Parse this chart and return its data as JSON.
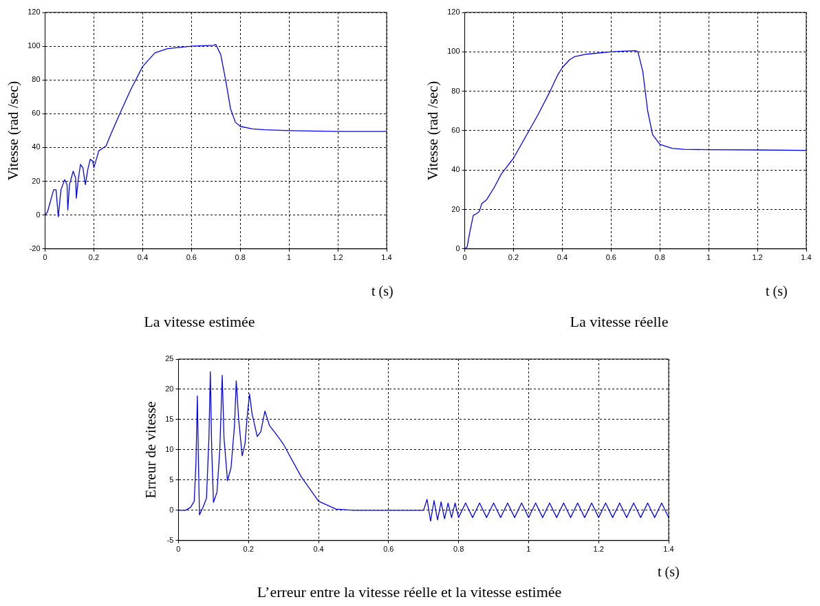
{
  "chart_data": [
    {
      "type": "line",
      "ylabel": "Vitesse (rad /sec)",
      "xlabel": "t (s)",
      "annotations": [
        "La vitesse estimée"
      ],
      "xlim": [
        0,
        1.4
      ],
      "xticks": [
        0,
        0.2,
        0.4,
        0.6,
        0.8,
        1,
        1.2,
        1.4
      ],
      "ylim": [
        -20,
        120
      ],
      "yticks": [
        -20,
        0,
        20,
        40,
        60,
        80,
        100,
        120
      ],
      "grid": true,
      "marker": "none",
      "line_style": "solid",
      "color": "#0000ff",
      "x": [
        0,
        0.01,
        0.035,
        0.045,
        0.054,
        0.065,
        0.08,
        0.09,
        0.093,
        0.1,
        0.115,
        0.125,
        0.128,
        0.135,
        0.145,
        0.155,
        0.165,
        0.175,
        0.185,
        0.195,
        0.2,
        0.21,
        0.22,
        0.24,
        0.25,
        0.27,
        0.3,
        0.35,
        0.4,
        0.45,
        0.5,
        0.6,
        0.69,
        0.7,
        0.72,
        0.74,
        0.76,
        0.78,
        0.8,
        0.85,
        0.9,
        1.0,
        1.2,
        1.4
      ],
      "values": [
        0,
        2,
        15,
        15,
        -1,
        15,
        21,
        18,
        3,
        18,
        26,
        22,
        10,
        20,
        30,
        28,
        18,
        27,
        33,
        32,
        28,
        33,
        38,
        40,
        41,
        48,
        58,
        74,
        88,
        96,
        98.5,
        100,
        100.5,
        101,
        95,
        80,
        63,
        55,
        52.5,
        51,
        50.5,
        50,
        49.5,
        49.5
      ]
    },
    {
      "type": "line",
      "ylabel": "Vitesse (rad /sec)",
      "xlabel": "t (s)",
      "annotations": [
        "La vitesse réelle"
      ],
      "xlim": [
        0,
        1.4
      ],
      "xticks": [
        0,
        0.2,
        0.4,
        0.6,
        0.8,
        1,
        1.2,
        1.4
      ],
      "ylim": [
        0,
        120
      ],
      "yticks": [
        0,
        20,
        40,
        60,
        80,
        100,
        120
      ],
      "grid": true,
      "marker": "none",
      "line_style": "solid",
      "color": "#0000ff",
      "x": [
        0,
        0.01,
        0.02,
        0.035,
        0.05,
        0.06,
        0.07,
        0.09,
        0.12,
        0.15,
        0.2,
        0.25,
        0.3,
        0.35,
        0.38,
        0.4,
        0.43,
        0.45,
        0.5,
        0.6,
        0.65,
        0.7,
        0.71,
        0.73,
        0.75,
        0.77,
        0.8,
        0.85,
        0.9,
        1.0,
        1.2,
        1.4
      ],
      "values": [
        0,
        1,
        8,
        17,
        18,
        19,
        23,
        25,
        31,
        38,
        46,
        57,
        68,
        80,
        88,
        92,
        96,
        97.5,
        98.8,
        100,
        100.3,
        100.6,
        100,
        90,
        70,
        58,
        53,
        51,
        50.5,
        50.3,
        50.2,
        50
      ]
    },
    {
      "type": "line",
      "ylabel": "Erreur de vitesse",
      "xlabel": "t (s)",
      "annotations": [
        "L’erreur entre la vitesse réelle et la vitesse estimée"
      ],
      "xlim": [
        0,
        1.4
      ],
      "xticks": [
        0,
        0.2,
        0.4,
        0.6,
        0.8,
        1,
        1.2,
        1.4
      ],
      "ylim": [
        -5,
        25
      ],
      "yticks": [
        -5,
        0,
        5,
        10,
        15,
        20,
        25
      ],
      "grid": true,
      "marker": "none",
      "line_style": "solid",
      "color": "#0000ff",
      "x": [
        0,
        0.02,
        0.035,
        0.045,
        0.05,
        0.054,
        0.057,
        0.06,
        0.07,
        0.08,
        0.087,
        0.091,
        0.095,
        0.1,
        0.11,
        0.118,
        0.125,
        0.13,
        0.14,
        0.15,
        0.16,
        0.165,
        0.172,
        0.182,
        0.19,
        0.197,
        0.203,
        0.21,
        0.225,
        0.235,
        0.247,
        0.26,
        0.28,
        0.3,
        0.35,
        0.4,
        0.45,
        0.5,
        0.6,
        0.7,
        0.71,
        0.72,
        0.73,
        0.74,
        0.75,
        0.76,
        0.77,
        0.78,
        0.79,
        0.8,
        0.82,
        0.84,
        0.86,
        0.88,
        0.9,
        0.92,
        0.94,
        0.96,
        0.98,
        1.0,
        1.02,
        1.04,
        1.06,
        1.08,
        1.1,
        1.12,
        1.14,
        1.16,
        1.18,
        1.2,
        1.22,
        1.24,
        1.26,
        1.28,
        1.3,
        1.32,
        1.34,
        1.36,
        1.38,
        1.4
      ],
      "values": [
        0,
        0,
        0.5,
        1.5,
        8,
        18.9,
        8,
        -0.75,
        0.5,
        2,
        12,
        22.9,
        10,
        1.3,
        3,
        10,
        22.3,
        12,
        4.9,
        7,
        14,
        21.4,
        15,
        9,
        11,
        16,
        19.2,
        16,
        12.2,
        13,
        16.4,
        14,
        12.5,
        10.9,
        5.6,
        1.5,
        0.2,
        0,
        0,
        0,
        1.8,
        -1.8,
        1.6,
        -1.6,
        1.4,
        -1.4,
        1.2,
        -1.2,
        1.2,
        -1.2,
        1.2,
        -1.2,
        1.2,
        -1.2,
        1.2,
        -1.2,
        1.2,
        -1.2,
        1.2,
        -1.2,
        1.2,
        -1.2,
        1.2,
        -1.2,
        1.2,
        -1.2,
        1.2,
        -1.2,
        1.2,
        -1.2,
        1.2,
        -1.2,
        1.2,
        -1.2,
        1.2,
        -1.2,
        1.2,
        -1.2,
        1.2,
        -1.2
      ]
    }
  ]
}
